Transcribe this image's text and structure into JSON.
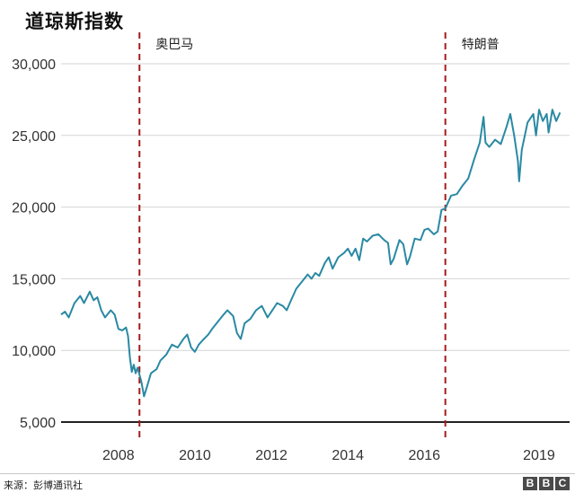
{
  "chart_data": {
    "type": "line",
    "title": "道琼斯指数",
    "xlabel": "",
    "ylabel": "",
    "xlim": [
      2007.0,
      2020.3
    ],
    "ylim": [
      5000,
      30000
    ],
    "yticks": [
      5000,
      10000,
      15000,
      20000,
      25000,
      30000
    ],
    "ytick_labels": [
      "5,000",
      "10,000",
      "15,000",
      "20,000",
      "25,000",
      "30,000"
    ],
    "xticks": [
      2008,
      2010,
      2012,
      2014,
      2016,
      2019
    ],
    "xtick_labels": [
      "2008",
      "2010",
      "2012",
      "2014",
      "2016",
      "2019"
    ],
    "grid": true,
    "series": [
      {
        "color": "#2a89a3",
        "points": [
          [
            2007.0,
            12500
          ],
          [
            2007.1,
            12700
          ],
          [
            2007.2,
            12300
          ],
          [
            2007.35,
            13300
          ],
          [
            2007.5,
            13800
          ],
          [
            2007.6,
            13300
          ],
          [
            2007.75,
            14100
          ],
          [
            2007.85,
            13500
          ],
          [
            2007.95,
            13700
          ],
          [
            2008.05,
            12800
          ],
          [
            2008.15,
            12300
          ],
          [
            2008.3,
            12800
          ],
          [
            2008.4,
            12500
          ],
          [
            2008.5,
            11500
          ],
          [
            2008.6,
            11400
          ],
          [
            2008.7,
            11600
          ],
          [
            2008.75,
            11000
          ],
          [
            2008.8,
            9500
          ],
          [
            2008.85,
            8500
          ],
          [
            2008.9,
            9000
          ],
          [
            2008.95,
            8400
          ],
          [
            2009.0,
            8800
          ],
          [
            2009.1,
            7800
          ],
          [
            2009.17,
            6800
          ],
          [
            2009.25,
            7500
          ],
          [
            2009.35,
            8400
          ],
          [
            2009.5,
            8700
          ],
          [
            2009.6,
            9300
          ],
          [
            2009.75,
            9700
          ],
          [
            2009.9,
            10400
          ],
          [
            2010.05,
            10200
          ],
          [
            2010.2,
            10800
          ],
          [
            2010.3,
            11100
          ],
          [
            2010.4,
            10200
          ],
          [
            2010.5,
            9900
          ],
          [
            2010.6,
            10400
          ],
          [
            2010.7,
            10700
          ],
          [
            2010.85,
            11100
          ],
          [
            2010.95,
            11500
          ],
          [
            2011.1,
            12000
          ],
          [
            2011.25,
            12500
          ],
          [
            2011.35,
            12800
          ],
          [
            2011.5,
            12400
          ],
          [
            2011.6,
            11200
          ],
          [
            2011.7,
            10800
          ],
          [
            2011.8,
            11900
          ],
          [
            2011.95,
            12200
          ],
          [
            2012.1,
            12800
          ],
          [
            2012.25,
            13100
          ],
          [
            2012.4,
            12300
          ],
          [
            2012.5,
            12700
          ],
          [
            2012.65,
            13300
          ],
          [
            2012.8,
            13100
          ],
          [
            2012.9,
            12800
          ],
          [
            2013.0,
            13400
          ],
          [
            2013.15,
            14300
          ],
          [
            2013.3,
            14800
          ],
          [
            2013.45,
            15300
          ],
          [
            2013.55,
            15000
          ],
          [
            2013.65,
            15400
          ],
          [
            2013.75,
            15200
          ],
          [
            2013.9,
            16100
          ],
          [
            2014.0,
            16500
          ],
          [
            2014.1,
            15700
          ],
          [
            2014.25,
            16500
          ],
          [
            2014.4,
            16800
          ],
          [
            2014.5,
            17100
          ],
          [
            2014.6,
            16600
          ],
          [
            2014.7,
            17100
          ],
          [
            2014.8,
            16300
          ],
          [
            2014.9,
            17800
          ],
          [
            2015.0,
            17600
          ],
          [
            2015.15,
            18000
          ],
          [
            2015.3,
            18100
          ],
          [
            2015.45,
            17700
          ],
          [
            2015.55,
            17500
          ],
          [
            2015.62,
            16000
          ],
          [
            2015.7,
            16400
          ],
          [
            2015.85,
            17700
          ],
          [
            2015.95,
            17400
          ],
          [
            2016.05,
            16000
          ],
          [
            2016.12,
            16500
          ],
          [
            2016.25,
            17800
          ],
          [
            2016.4,
            17700
          ],
          [
            2016.5,
            18400
          ],
          [
            2016.6,
            18500
          ],
          [
            2016.75,
            18100
          ],
          [
            2016.85,
            18300
          ],
          [
            2016.95,
            19800
          ],
          [
            2017.05,
            19900
          ],
          [
            2017.2,
            20800
          ],
          [
            2017.35,
            20900
          ],
          [
            2017.5,
            21500
          ],
          [
            2017.65,
            22000
          ],
          [
            2017.8,
            23300
          ],
          [
            2017.95,
            24500
          ],
          [
            2018.05,
            26300
          ],
          [
            2018.1,
            24500
          ],
          [
            2018.2,
            24200
          ],
          [
            2018.35,
            24700
          ],
          [
            2018.5,
            24400
          ],
          [
            2018.65,
            25600
          ],
          [
            2018.75,
            26500
          ],
          [
            2018.85,
            25000
          ],
          [
            2018.95,
            23200
          ],
          [
            2018.98,
            21800
          ],
          [
            2019.05,
            24000
          ],
          [
            2019.2,
            25900
          ],
          [
            2019.35,
            26500
          ],
          [
            2019.42,
            25000
          ],
          [
            2019.5,
            26800
          ],
          [
            2019.6,
            26000
          ],
          [
            2019.7,
            26500
          ],
          [
            2019.75,
            25200
          ],
          [
            2019.85,
            26800
          ],
          [
            2019.95,
            26000
          ],
          [
            2020.05,
            26600
          ]
        ]
      }
    ],
    "annotations": [
      {
        "x": 2009.05,
        "label": "奥巴马"
      },
      {
        "x": 2017.05,
        "label": "特朗普"
      }
    ]
  },
  "footer": {
    "source": "来源：彭博通讯社",
    "logo": [
      "B",
      "B",
      "C"
    ]
  }
}
